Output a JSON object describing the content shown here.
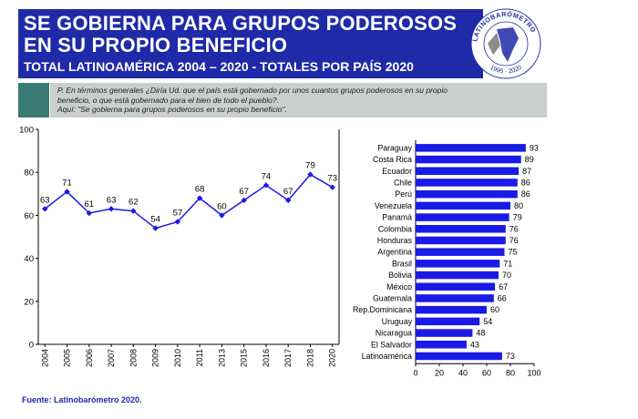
{
  "title": "SE GOBIERNA PARA GRUPOS PODEROSOS EN SU PROPIO BENEFICIO",
  "subtitle": "TOTAL LATINOAMÉRICA 2004 – 2020 - TOTALES POR PAÍS 2020",
  "question": {
    "line1": "P. En términos generales ¿Diría Ud. que el país está gobernado por unos cuantos grupos poderosos en su propio",
    "line2": "beneficio, o que está gobernado para el bien de todo el pueblo?.",
    "line3": "Aquí: \"Se gobierna para grupos poderosos en su propio beneficio\"."
  },
  "source": "Fuente: Latinobarómetro 2020.",
  "logo": {
    "name": "LATINOBARÓMETRO",
    "years": "1995 · 2020"
  },
  "colors": {
    "brand": "#1f2aa8",
    "series": "#1a1ae6",
    "gray_box": "#c9cfcb",
    "teal": "#3a7a74"
  },
  "chart_data": [
    {
      "type": "line",
      "title": "",
      "categories": [
        "2004",
        "2005",
        "2006",
        "2007",
        "2008",
        "2009",
        "2010",
        "2011",
        "2013",
        "2015",
        "2016",
        "2017",
        "2018",
        "2020"
      ],
      "values": [
        63,
        71,
        61,
        63,
        62,
        54,
        57,
        68,
        60,
        67,
        74,
        67,
        79,
        73
      ],
      "ylim": [
        0,
        100
      ],
      "yticks": [
        0,
        20,
        40,
        60,
        80,
        100
      ],
      "xlabel": "",
      "ylabel": ""
    },
    {
      "type": "bar",
      "orientation": "horizontal",
      "categories": [
        "Paraguay",
        "Costa Rica",
        "Ecuador",
        "Chile",
        "Perú",
        "Venezuela",
        "Panamá",
        "Colombia",
        "Honduras",
        "Argentina",
        "Brasil",
        "Bolivia",
        "México",
        "Guatemala",
        "Rep.Dominicana",
        "Uruguay",
        "Nicaragua",
        "El Salvador",
        "Latinoamérica"
      ],
      "values": [
        93,
        89,
        87,
        86,
        86,
        80,
        79,
        76,
        76,
        75,
        71,
        70,
        67,
        66,
        60,
        54,
        48,
        43,
        73
      ],
      "xlim": [
        0,
        100
      ],
      "xticks": [
        0,
        20,
        40,
        60,
        80,
        100
      ]
    }
  ]
}
